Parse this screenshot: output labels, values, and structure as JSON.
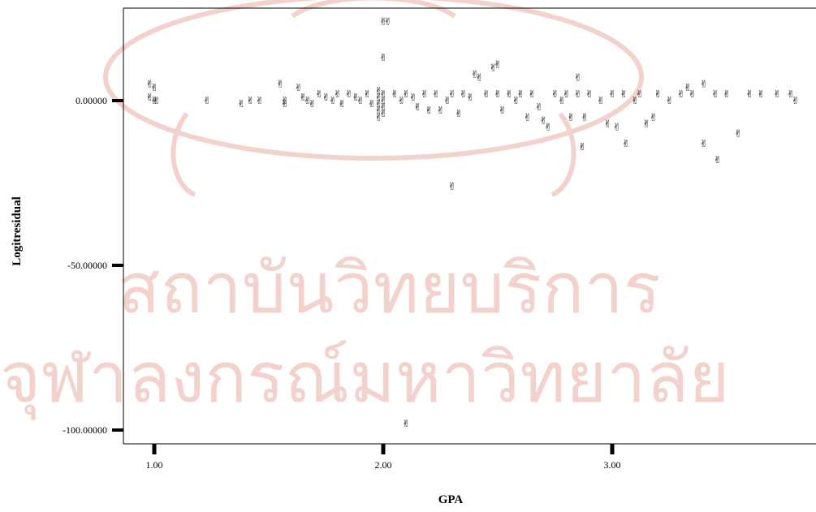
{
  "watermark": {
    "line1": "สถาบันวิทยบริการ",
    "line2": "จุฬาลงกรณ์มหาวิทยาลัย",
    "color": "#f3d2cd"
  },
  "chart_data": {
    "type": "scatter",
    "xlabel": "GPA",
    "ylabel": "Logitresidual",
    "xlim": [
      0.85,
      3.85
    ],
    "ylim": [
      -105,
      25
    ],
    "x_ticks": [
      {
        "value": 1.0,
        "label": "1.00"
      },
      {
        "value": 2.0,
        "label": "2.00"
      },
      {
        "value": 3.0,
        "label": "3.00"
      }
    ],
    "y_ticks": [
      {
        "value": 0,
        "label": "0.00000"
      },
      {
        "value": -50,
        "label": "-50.00000"
      },
      {
        "value": -100,
        "label": "-100.00000"
      }
    ],
    "grid": false,
    "marker": "✌",
    "series": [
      {
        "points": [
          [
            2.0,
            24
          ],
          [
            2.02,
            24
          ],
          [
            2.0,
            13
          ],
          [
            0.98,
            5
          ],
          [
            1.0,
            4
          ],
          [
            0.98,
            1
          ],
          [
            1.0,
            0
          ],
          [
            1.01,
            0
          ],
          [
            1.23,
            0
          ],
          [
            1.38,
            -1
          ],
          [
            1.42,
            0
          ],
          [
            1.46,
            0
          ],
          [
            1.55,
            5
          ],
          [
            1.57,
            0
          ],
          [
            1.57,
            -1
          ],
          [
            1.63,
            4
          ],
          [
            1.65,
            1
          ],
          [
            1.67,
            0
          ],
          [
            1.69,
            -1
          ],
          [
            1.72,
            2
          ],
          [
            1.75,
            1
          ],
          [
            1.78,
            0
          ],
          [
            1.8,
            2
          ],
          [
            1.82,
            -1
          ],
          [
            1.85,
            2
          ],
          [
            1.88,
            1
          ],
          [
            1.9,
            0
          ],
          [
            1.93,
            2
          ],
          [
            1.95,
            -1
          ],
          [
            1.98,
            3
          ],
          [
            1.98,
            1
          ],
          [
            1.98,
            -1
          ],
          [
            1.98,
            -3
          ],
          [
            1.98,
            -5
          ],
          [
            2.0,
            2
          ],
          [
            2.0,
            0
          ],
          [
            2.0,
            -2
          ],
          [
            2.0,
            -4
          ],
          [
            2.05,
            2
          ],
          [
            2.08,
            0
          ],
          [
            2.1,
            2
          ],
          [
            2.13,
            1
          ],
          [
            2.15,
            -2
          ],
          [
            2.18,
            2
          ],
          [
            2.2,
            -3
          ],
          [
            2.23,
            2
          ],
          [
            2.25,
            -3
          ],
          [
            2.28,
            0
          ],
          [
            2.3,
            2
          ],
          [
            2.33,
            -4
          ],
          [
            2.35,
            2
          ],
          [
            2.38,
            1
          ],
          [
            2.4,
            8
          ],
          [
            2.42,
            7
          ],
          [
            2.45,
            2
          ],
          [
            2.48,
            10
          ],
          [
            2.5,
            11
          ],
          [
            2.5,
            2
          ],
          [
            2.52,
            -3
          ],
          [
            2.55,
            2
          ],
          [
            2.58,
            0
          ],
          [
            2.6,
            2
          ],
          [
            2.63,
            -5
          ],
          [
            2.65,
            2
          ],
          [
            2.68,
            -2
          ],
          [
            2.7,
            -6
          ],
          [
            2.72,
            -8
          ],
          [
            2.75,
            2
          ],
          [
            2.78,
            0
          ],
          [
            2.8,
            2
          ],
          [
            2.82,
            -5
          ],
          [
            2.85,
            7
          ],
          [
            2.85,
            2
          ],
          [
            2.87,
            -14
          ],
          [
            2.88,
            -5
          ],
          [
            2.9,
            2
          ],
          [
            2.95,
            0
          ],
          [
            2.98,
            -7
          ],
          [
            3.0,
            2
          ],
          [
            3.02,
            -8
          ],
          [
            3.05,
            2
          ],
          [
            3.06,
            -13
          ],
          [
            3.1,
            0
          ],
          [
            3.12,
            2
          ],
          [
            3.15,
            -7
          ],
          [
            3.18,
            -5
          ],
          [
            3.2,
            2
          ],
          [
            3.25,
            0
          ],
          [
            3.3,
            2
          ],
          [
            3.33,
            4
          ],
          [
            3.35,
            2
          ],
          [
            3.4,
            5
          ],
          [
            3.4,
            -13
          ],
          [
            3.45,
            2
          ],
          [
            3.46,
            -18
          ],
          [
            3.5,
            2
          ],
          [
            3.55,
            -10
          ],
          [
            3.6,
            2
          ],
          [
            3.65,
            2
          ],
          [
            3.72,
            2
          ],
          [
            3.78,
            2
          ],
          [
            3.8,
            0
          ],
          [
            2.3,
            -26
          ],
          [
            2.1,
            -98
          ]
        ]
      }
    ]
  }
}
